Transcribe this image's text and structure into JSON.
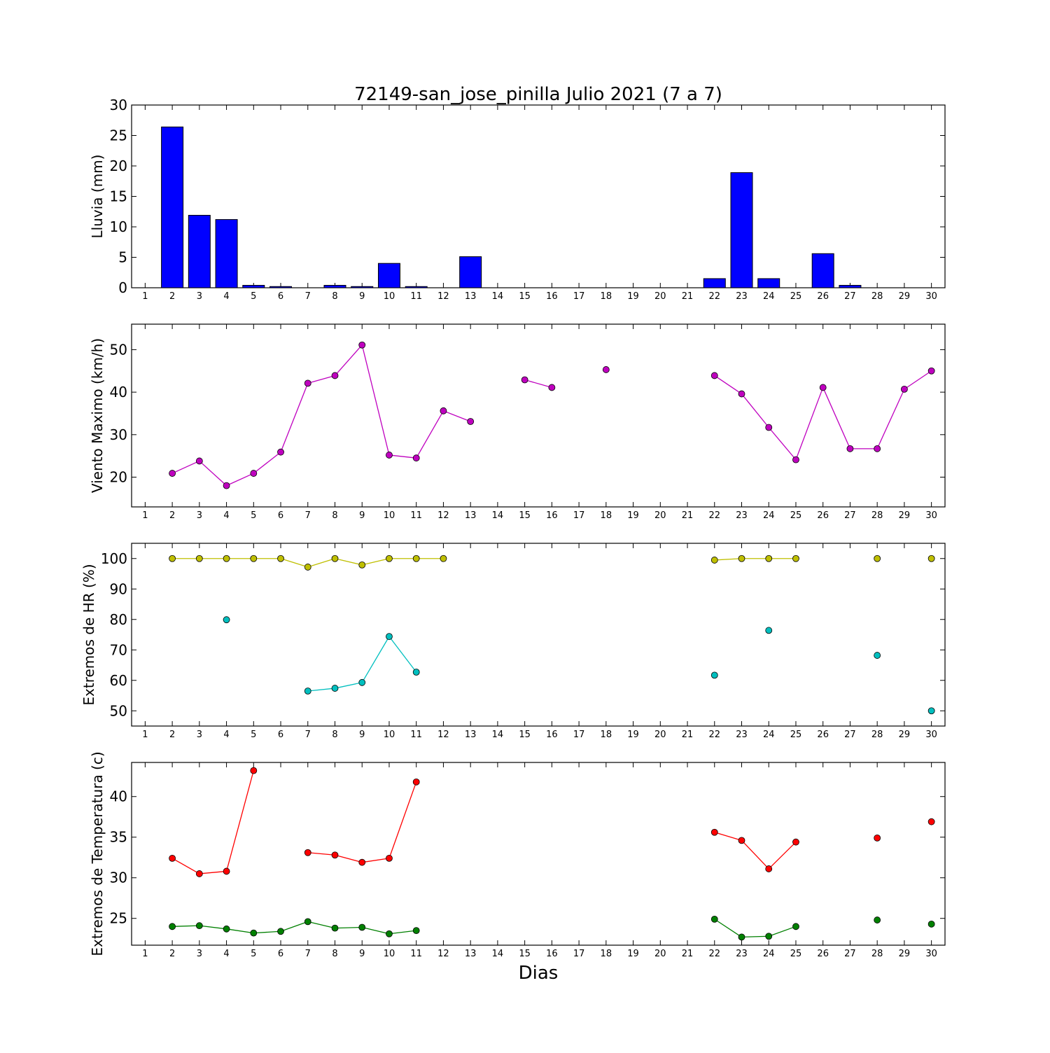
{
  "title": "72149-san_jose_pinilla Julio 2021  (7 a 7)",
  "xlabel": "Dias",
  "colors": {
    "rain": "#0000ff",
    "wind": "#bf00bf",
    "hr_max": "#bfbf00",
    "hr_min": "#00bfbf",
    "t_max": "#ff0000",
    "t_min": "#008000"
  },
  "chart_data": [
    {
      "type": "bar",
      "ylabel": "Lluvia (mm)",
      "ylim": [
        0,
        30
      ],
      "yticks": [
        0,
        5,
        10,
        15,
        20,
        25,
        30
      ],
      "x": [
        1,
        2,
        3,
        4,
        5,
        6,
        7,
        8,
        9,
        10,
        11,
        12,
        13,
        14,
        15,
        16,
        17,
        18,
        19,
        20,
        21,
        22,
        23,
        24,
        25,
        26,
        27,
        28,
        29,
        30
      ],
      "values": [
        0,
        26.4,
        11.9,
        11.2,
        0.4,
        0.2,
        0,
        0.4,
        0.2,
        4.0,
        0.2,
        0,
        5.1,
        0,
        0,
        0,
        0,
        0,
        0,
        0,
        0,
        1.5,
        18.9,
        1.5,
        0,
        5.6,
        0.4,
        0,
        0,
        0
      ]
    },
    {
      "type": "line",
      "ylabel": "Viento Maximo (km/h)",
      "ylim": [
        13,
        56
      ],
      "yticks": [
        20,
        30,
        40,
        50
      ],
      "x": [
        1,
        2,
        3,
        4,
        5,
        6,
        7,
        8,
        9,
        10,
        11,
        12,
        13,
        14,
        15,
        16,
        17,
        18,
        19,
        20,
        21,
        22,
        23,
        24,
        25,
        26,
        27,
        28,
        29,
        30
      ],
      "series": [
        {
          "color_key": "wind",
          "values": [
            null,
            20.9,
            23.8,
            18.0,
            20.9,
            25.9,
            42.1,
            43.9,
            51.1,
            25.2,
            24.5,
            35.6,
            33.1,
            null,
            42.9,
            41.1,
            null,
            45.3,
            null,
            null,
            null,
            43.9,
            39.6,
            31.7,
            24.1,
            41.1,
            26.7,
            26.7,
            40.7,
            45.0
          ]
        }
      ]
    },
    {
      "type": "line",
      "ylabel": "Extremos de HR (%)",
      "ylim": [
        45,
        105
      ],
      "yticks": [
        50,
        60,
        70,
        80,
        90,
        100
      ],
      "x": [
        1,
        2,
        3,
        4,
        5,
        6,
        7,
        8,
        9,
        10,
        11,
        12,
        13,
        14,
        15,
        16,
        17,
        18,
        19,
        20,
        21,
        22,
        23,
        24,
        25,
        26,
        27,
        28,
        29,
        30
      ],
      "series": [
        {
          "color_key": "hr_max",
          "values": [
            null,
            100,
            100,
            100,
            100,
            100,
            97.2,
            100,
            97.9,
            100,
            100,
            100,
            null,
            null,
            null,
            null,
            null,
            null,
            null,
            null,
            null,
            99.5,
            100,
            100,
            100,
            null,
            null,
            100,
            null,
            100
          ]
        },
        {
          "color_key": "hr_min",
          "values": [
            null,
            null,
            null,
            79.9,
            null,
            null,
            56.5,
            57.4,
            59.3,
            74.4,
            62.7,
            null,
            null,
            null,
            null,
            null,
            null,
            null,
            null,
            null,
            null,
            61.7,
            null,
            76.4,
            null,
            null,
            null,
            68.2,
            null,
            50.0
          ]
        }
      ]
    },
    {
      "type": "line",
      "ylabel": "Extremos de Temperatura (c)",
      "ylim": [
        21.7,
        44.2
      ],
      "yticks": [
        25,
        30,
        35,
        40
      ],
      "x": [
        1,
        2,
        3,
        4,
        5,
        6,
        7,
        8,
        9,
        10,
        11,
        12,
        13,
        14,
        15,
        16,
        17,
        18,
        19,
        20,
        21,
        22,
        23,
        24,
        25,
        26,
        27,
        28,
        29,
        30
      ],
      "series": [
        {
          "color_key": "t_max",
          "values": [
            null,
            32.4,
            30.5,
            30.8,
            43.2,
            null,
            33.1,
            32.8,
            31.9,
            32.4,
            41.8,
            null,
            null,
            null,
            null,
            null,
            null,
            null,
            null,
            null,
            null,
            35.6,
            34.6,
            31.1,
            34.4,
            null,
            null,
            34.9,
            null,
            36.9
          ]
        },
        {
          "color_key": "t_min",
          "values": [
            null,
            24.0,
            24.1,
            23.7,
            23.2,
            23.4,
            24.6,
            23.8,
            23.9,
            23.1,
            23.5,
            null,
            null,
            null,
            null,
            null,
            null,
            null,
            null,
            null,
            null,
            24.9,
            22.7,
            22.8,
            24.0,
            null,
            null,
            24.8,
            null,
            24.3
          ]
        }
      ]
    }
  ]
}
